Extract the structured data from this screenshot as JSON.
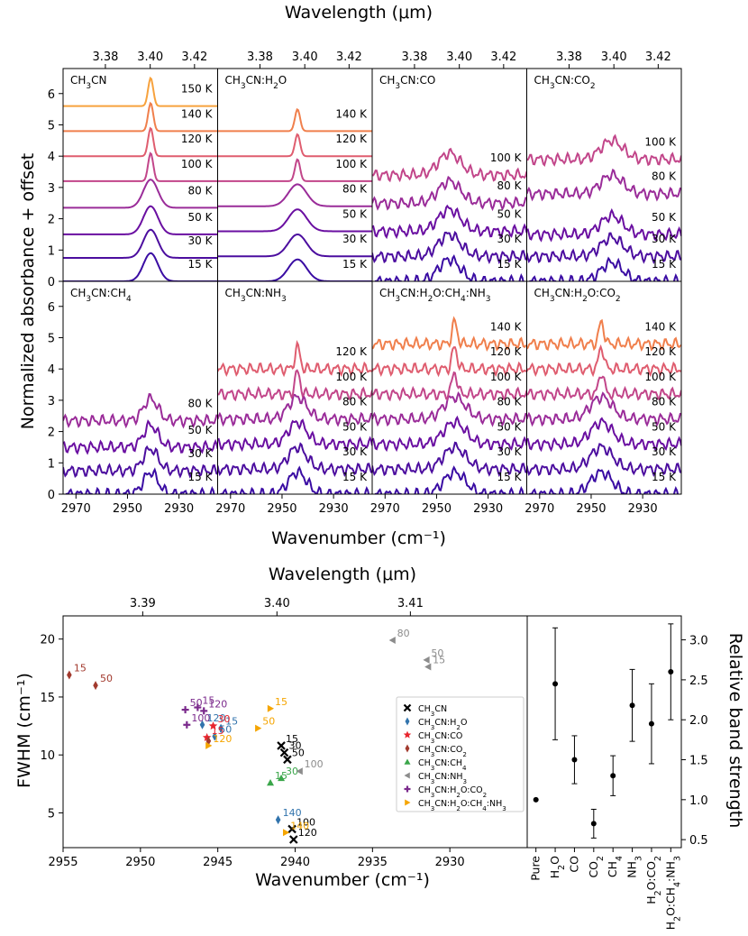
{
  "chart_data": [
    {
      "type": "line",
      "title": "",
      "xlabel": "Wavenumber (cm⁻¹)",
      "ylabel": "Normalized absorbance + offset",
      "top_xlabel": "Wavelength (μm)",
      "xlim": [
        2975,
        2915
      ],
      "ylim": [
        0,
        6.8
      ],
      "yticks": [
        "0",
        "1",
        "2",
        "3",
        "4",
        "5",
        "6"
      ],
      "xticks": [
        "2970",
        "2950",
        "2930"
      ],
      "top_xticks": [
        "3.38",
        "3.40",
        "3.42"
      ],
      "panels": [
        {
          "label": "CH₃CN",
          "peak": 2941,
          "width": 4,
          "series": [
            {
              "name": "15 K",
              "offset": 0
            },
            {
              "name": "30 K",
              "offset": 0.75
            },
            {
              "name": "50 K",
              "offset": 1.5
            },
            {
              "name": "80 K",
              "offset": 2.35
            },
            {
              "name": "100 K",
              "offset": 3.2
            },
            {
              "name": "120 K",
              "offset": 4.0
            },
            {
              "name": "140 K",
              "offset": 4.8
            },
            {
              "name": "150 K",
              "offset": 5.6
            }
          ]
        },
        {
          "label": "CH₃CN:H₂O",
          "peak": 2944,
          "width": 5,
          "series": [
            {
              "name": "15 K",
              "offset": 0
            },
            {
              "name": "30 K",
              "offset": 0.8
            },
            {
              "name": "50 K",
              "offset": 1.6
            },
            {
              "name": "80 K",
              "offset": 2.4
            },
            {
              "name": "100 K",
              "offset": 3.2
            },
            {
              "name": "120 K",
              "offset": 4.0
            },
            {
              "name": "140 K",
              "offset": 4.8
            }
          ]
        },
        {
          "label": "CH₃CN:CO",
          "peak": 2945,
          "width": 6,
          "series": [
            {
              "name": "15 K",
              "offset": 0
            },
            {
              "name": "30 K",
              "offset": 0.8
            },
            {
              "name": "50 K",
              "offset": 1.6
            },
            {
              "name": "80 K",
              "offset": 2.5
            },
            {
              "name": "100 K",
              "offset": 3.4
            }
          ]
        },
        {
          "label": "CH₃CN:CO₂",
          "peak": 2942,
          "width": 6,
          "series": [
            {
              "name": "15 K",
              "offset": 0
            },
            {
              "name": "30 K",
              "offset": 0.8
            },
            {
              "name": "50 K",
              "offset": 1.5
            },
            {
              "name": "80 K",
              "offset": 2.8
            },
            {
              "name": "100 K",
              "offset": 3.9
            }
          ]
        },
        {
          "label": "CH₃CN:CH₄",
          "peak": 2941,
          "width": 4,
          "series": [
            {
              "name": "15 K",
              "offset": 0
            },
            {
              "name": "30 K",
              "offset": 0.75
            },
            {
              "name": "50 K",
              "offset": 1.5
            },
            {
              "name": "80 K",
              "offset": 2.35
            }
          ]
        },
        {
          "label": "CH₃CN:NH₃",
          "peak": 2944,
          "width": 5,
          "series": [
            {
              "name": "15 K",
              "offset": 0
            },
            {
              "name": "30 K",
              "offset": 0.8
            },
            {
              "name": "50 K",
              "offset": 1.6
            },
            {
              "name": "80 K",
              "offset": 2.4
            },
            {
              "name": "100 K",
              "offset": 3.2
            },
            {
              "name": "120 K",
              "offset": 4.0
            }
          ]
        },
        {
          "label": "CH₃CN:H₂O:CH₄:NH₃",
          "peak": 2943,
          "width": 6,
          "series": [
            {
              "name": "15 K",
              "offset": 0
            },
            {
              "name": "30 K",
              "offset": 0.8
            },
            {
              "name": "50 K",
              "offset": 1.6
            },
            {
              "name": "80 K",
              "offset": 2.4
            },
            {
              "name": "100 K",
              "offset": 3.2
            },
            {
              "name": "120 K",
              "offset": 4.0
            },
            {
              "name": "140 K",
              "offset": 4.8
            }
          ]
        },
        {
          "label": "CH₃CN:H₂O:CO₂",
          "peak": 2946,
          "width": 6,
          "series": [
            {
              "name": "15 K",
              "offset": 0
            },
            {
              "name": "30 K",
              "offset": 0.8
            },
            {
              "name": "50 K",
              "offset": 1.6
            },
            {
              "name": "80 K",
              "offset": 2.4
            },
            {
              "name": "100 K",
              "offset": 3.2
            },
            {
              "name": "120 K",
              "offset": 4.0
            },
            {
              "name": "140 K",
              "offset": 4.8
            }
          ]
        }
      ]
    },
    {
      "type": "scatter",
      "xlabel": "Wavenumber (cm⁻¹)",
      "ylabel": "FWHM (cm⁻¹)",
      "top_xlabel": "Wavelength (μm)",
      "xlim": [
        2955,
        2925
      ],
      "ylim": [
        2,
        22
      ],
      "xticks": [
        "2955",
        "2950",
        "2945",
        "2940",
        "2935",
        "2930"
      ],
      "yticks": [
        "5",
        "10",
        "15",
        "20"
      ],
      "top_xticks": [
        "3.39",
        "3.40",
        "3.41"
      ],
      "legend_position": "lower-right",
      "series": [
        {
          "name": "CH₃CN",
          "color": "#000000",
          "marker": "x",
          "points": [
            {
              "x": 2940.9,
              "y": 10.8,
              "label": "15"
            },
            {
              "x": 2940.7,
              "y": 10.2,
              "label": "30"
            },
            {
              "x": 2940.5,
              "y": 9.6,
              "label": "50"
            },
            {
              "x": 2940.2,
              "y": 3.6,
              "label": "100"
            },
            {
              "x": 2940.1,
              "y": 2.7,
              "label": "120"
            }
          ]
        },
        {
          "name": "CH₃CN:H₂O",
          "color": "#3274ad",
          "marker": "diamond",
          "points": [
            {
              "x": 2944.8,
              "y": 12.3,
              "label": "15"
            },
            {
              "x": 2945.2,
              "y": 11.6,
              "label": "50"
            },
            {
              "x": 2946.0,
              "y": 12.6,
              "label": "120"
            },
            {
              "x": 2941.1,
              "y": 4.4,
              "label": "140"
            }
          ]
        },
        {
          "name": "CH₃CN:CO",
          "color": "#e8252e",
          "marker": "star",
          "points": [
            {
              "x": 2945.3,
              "y": 12.5,
              "label": "30"
            },
            {
              "x": 2945.7,
              "y": 11.5,
              "label": "15"
            }
          ]
        },
        {
          "name": "CH₃CN:CO₂",
          "color": "#a23a2e",
          "marker": "diamond",
          "points": [
            {
              "x": 2954.6,
              "y": 16.9,
              "label": "15"
            },
            {
              "x": 2952.9,
              "y": 16.0,
              "label": "50"
            },
            {
              "x": 2945.6,
              "y": 11.2,
              "label": ""
            }
          ]
        },
        {
          "name": "CH₃CN:CH₄",
          "color": "#3aa64a",
          "marker": "triangle-up",
          "points": [
            {
              "x": 2941.6,
              "y": 7.6,
              "label": "15"
            },
            {
              "x": 2940.9,
              "y": 8.0,
              "label": "30"
            }
          ]
        },
        {
          "name": "CH₃CN:NH₃",
          "color": "#8c8c8c",
          "marker": "triangle-left",
          "points": [
            {
              "x": 2933.7,
              "y": 19.9,
              "label": "80"
            },
            {
              "x": 2931.5,
              "y": 18.2,
              "label": "50"
            },
            {
              "x": 2931.4,
              "y": 17.6,
              "label": "15"
            },
            {
              "x": 2939.7,
              "y": 8.6,
              "label": "100"
            }
          ]
        },
        {
          "name": "CH₃CN:H₂O:CO₂",
          "color": "#7b2a8c",
          "marker": "plus",
          "points": [
            {
              "x": 2947.1,
              "y": 13.9,
              "label": "50"
            },
            {
              "x": 2946.3,
              "y": 14.1,
              "label": "15"
            },
            {
              "x": 2945.9,
              "y": 13.8,
              "label": "120"
            },
            {
              "x": 2947.0,
              "y": 12.6,
              "label": "100"
            }
          ]
        },
        {
          "name": "CH₃CN:H₂O:CH₄:NH₃",
          "color": "#f5a500",
          "marker": "triangle-right",
          "points": [
            {
              "x": 2941.6,
              "y": 14.0,
              "label": "15"
            },
            {
              "x": 2942.4,
              "y": 12.3,
              "label": "50"
            },
            {
              "x": 2945.6,
              "y": 10.8,
              "label": "120"
            },
            {
              "x": 2940.6,
              "y": 3.3,
              "label": "140"
            }
          ]
        }
      ]
    },
    {
      "type": "errorbar",
      "ylabel": "Relative band strength",
      "ylim": [
        0.4,
        3.3
      ],
      "yticks": [
        "0.5",
        "1.0",
        "1.5",
        "2.0",
        "2.5",
        "3.0"
      ],
      "categories": [
        "Pure",
        "H₂O",
        "CO",
        "CO₂",
        "CH₄",
        "NH₃",
        "H₂O:CO₂",
        "H₂O:CH₄:NH₃"
      ],
      "values": [
        1.0,
        2.45,
        1.5,
        0.7,
        1.3,
        2.18,
        1.95,
        2.6
      ],
      "errors": [
        0,
        0.7,
        0.3,
        0.18,
        0.25,
        0.45,
        0.5,
        0.6
      ]
    }
  ],
  "colors": {
    "temp_15": "#3a0ca3",
    "temp_30": "#4c0e9f",
    "temp_50": "#6a0fa1",
    "temp_80": "#9a2c99",
    "temp_100": "#c2468a",
    "temp_120": "#df5d6f",
    "temp_140": "#f07f4c",
    "temp_150": "#f7a23d"
  }
}
